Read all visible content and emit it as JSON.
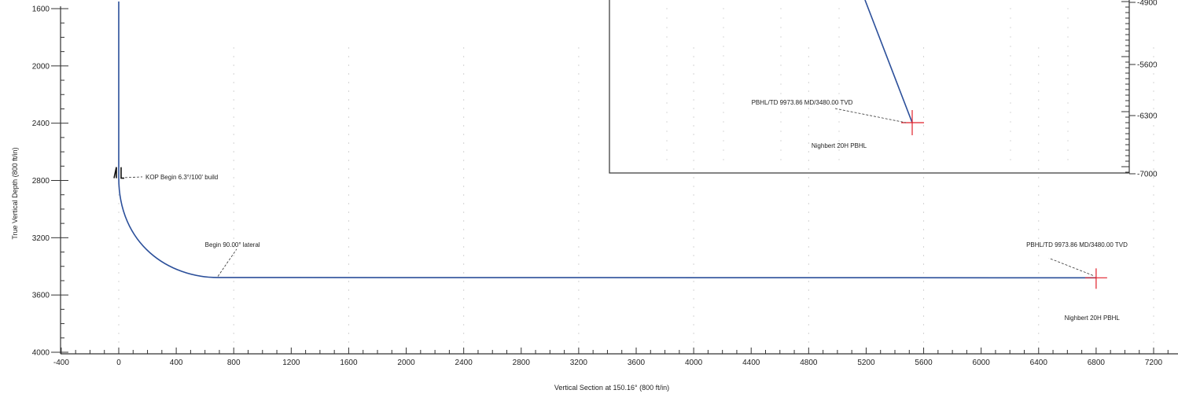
{
  "chart_data": {
    "type": "line",
    "xlabel": "Vertical Section at 150.16° (800 ft/in)",
    "ylabel": "True Vertical Depth (800 ft/in)",
    "xlim": [
      -400,
      7300
    ],
    "ylim": [
      1500,
      4000
    ],
    "x_ticks": [
      -400,
      0,
      400,
      800,
      1200,
      1600,
      2000,
      2400,
      2800,
      3200,
      3600,
      4000,
      4400,
      4800,
      5200,
      5600,
      6000,
      6400,
      6800,
      7200
    ],
    "y_ticks": [
      1600,
      2000,
      2400,
      2800,
      3200,
      3600,
      4000
    ],
    "y_inverted": true,
    "series": [
      {
        "points": [
          {
            "x": 0,
            "y": 1550
          },
          {
            "x": 0,
            "y": 2780
          },
          {
            "x": 60,
            "y": 3050
          },
          {
            "x": 160,
            "y": 3220
          },
          {
            "x": 300,
            "y": 3350
          },
          {
            "x": 480,
            "y": 3440
          },
          {
            "x": 690,
            "y": 3478
          },
          {
            "x": 6800,
            "y": 3480
          }
        ]
      }
    ],
    "annotations": [
      {
        "text": "KOP Begin 6.3°/100' build",
        "x": 0,
        "y": 2780
      },
      {
        "text": "Begin 90.00° lateral",
        "x": 690,
        "y": 3478
      },
      {
        "text": "PBHL/TD 9973.86 MD/3480.00 TVD",
        "x": 6800,
        "y": 3480
      },
      {
        "text": "Nighbert 20H PBHL",
        "x": 6800,
        "y": 3480
      }
    ],
    "inset": {
      "y_ticks": [
        "-4900",
        "-5600",
        "-6300",
        "-7000"
      ],
      "label_pbhl": "PBHL/TD 9973.86 MD/3480.00 TVD",
      "label_name": "Nighbert 20H PBHL"
    }
  },
  "colors": {
    "wellpath": "#2b4f9a",
    "target": "#e0202a",
    "axis": "#333333"
  }
}
